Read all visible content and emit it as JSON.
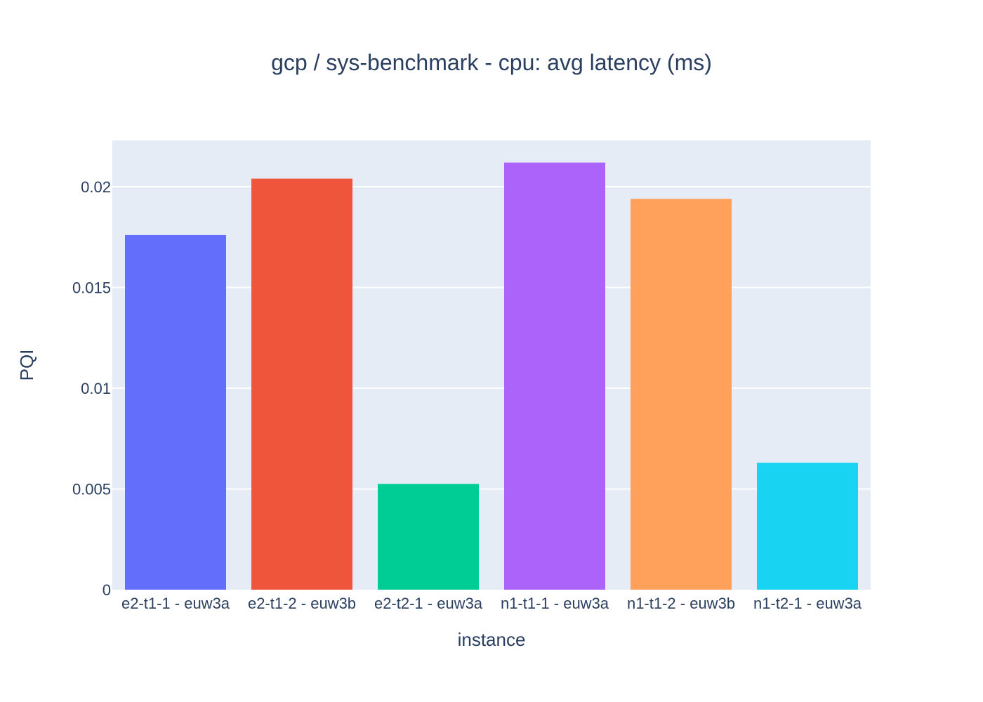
{
  "chart_data": {
    "type": "bar",
    "title": "gcp / sys-benchmark - cpu: avg latency (ms)",
    "xlabel": "instance",
    "ylabel": "PQI",
    "categories": [
      "e2-t1-1 - euw3a",
      "e2-t1-2 - euw3b",
      "e2-t2-1 - euw3a",
      "n1-t1-1 - euw3a",
      "n1-t1-2 - euw3b",
      "n1-t2-1 - euw3a"
    ],
    "values": [
      0.0176,
      0.0204,
      0.00525,
      0.0212,
      0.0194,
      0.0063
    ],
    "colors": [
      "#636efa",
      "#ef553b",
      "#00cc96",
      "#ab63fa",
      "#ffa15a",
      "#19d3f3"
    ],
    "ylim": [
      0,
      0.0223
    ],
    "yticks": [
      0,
      0.005,
      0.01,
      0.015,
      0.02
    ],
    "ytick_labels": [
      "0",
      "0.005",
      "0.01",
      "0.015",
      "0.02"
    ],
    "grid": true,
    "legend": "none",
    "plot_background": "#e5ecf6",
    "gridline_color": "#ffffff",
    "text_color": "#2a3f5f"
  }
}
